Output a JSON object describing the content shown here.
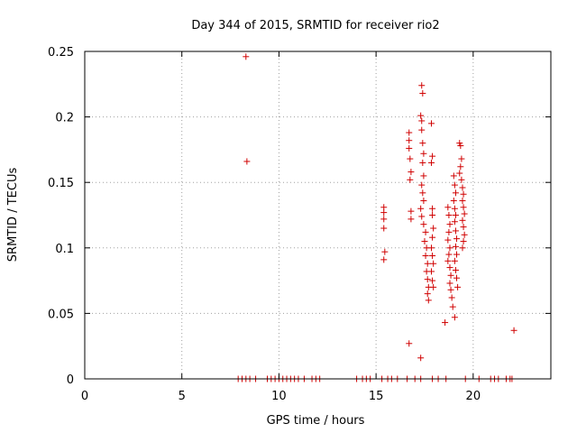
{
  "chart_data": {
    "type": "scatter",
    "title": "Day 344 of 2015, SRMTID for receiver rio2",
    "xlabel": "GPS time / hours",
    "ylabel": "SRMTID / TECUs",
    "xlim": [
      0,
      24
    ],
    "ylim": [
      0,
      0.25
    ],
    "xticks": [
      0,
      5,
      10,
      15,
      20
    ],
    "yticks": [
      0,
      0.05,
      0.1,
      0.15,
      0.2,
      0.25
    ],
    "xtick_labels": [
      "0",
      "5",
      "10",
      "15",
      "20"
    ],
    "ytick_labels": [
      "0",
      "0.05",
      "0.1",
      "0.15",
      "0.2",
      "0.25"
    ],
    "grid": true,
    "marker": "+",
    "color": "#d00000",
    "series": [
      {
        "name": "SRMTID",
        "points": [
          [
            8.3,
            0.246
          ],
          [
            8.35,
            0.166
          ],
          [
            15.4,
            0.131
          ],
          [
            15.4,
            0.127
          ],
          [
            15.4,
            0.122
          ],
          [
            15.4,
            0.115
          ],
          [
            15.45,
            0.097
          ],
          [
            15.4,
            0.091
          ],
          [
            16.7,
            0.188
          ],
          [
            16.7,
            0.182
          ],
          [
            16.7,
            0.176
          ],
          [
            16.75,
            0.168
          ],
          [
            16.8,
            0.158
          ],
          [
            16.75,
            0.152
          ],
          [
            16.8,
            0.128
          ],
          [
            16.8,
            0.122
          ],
          [
            16.7,
            0.027
          ],
          [
            17.35,
            0.224
          ],
          [
            17.4,
            0.218
          ],
          [
            17.3,
            0.201
          ],
          [
            17.35,
            0.197
          ],
          [
            17.35,
            0.19
          ],
          [
            17.4,
            0.18
          ],
          [
            17.45,
            0.172
          ],
          [
            17.4,
            0.165
          ],
          [
            17.45,
            0.155
          ],
          [
            17.35,
            0.148
          ],
          [
            17.4,
            0.142
          ],
          [
            17.45,
            0.136
          ],
          [
            17.3,
            0.13
          ],
          [
            17.35,
            0.124
          ],
          [
            17.45,
            0.118
          ],
          [
            17.55,
            0.112
          ],
          [
            17.5,
            0.105
          ],
          [
            17.6,
            0.1
          ],
          [
            17.55,
            0.094
          ],
          [
            17.65,
            0.088
          ],
          [
            17.6,
            0.082
          ],
          [
            17.65,
            0.076
          ],
          [
            17.7,
            0.07
          ],
          [
            17.65,
            0.065
          ],
          [
            17.7,
            0.06
          ],
          [
            17.3,
            0.016
          ],
          [
            17.85,
            0.195
          ],
          [
            17.9,
            0.17
          ],
          [
            17.85,
            0.165
          ],
          [
            17.9,
            0.13
          ],
          [
            17.9,
            0.125
          ],
          [
            17.95,
            0.115
          ],
          [
            17.9,
            0.108
          ],
          [
            17.85,
            0.1
          ],
          [
            17.9,
            0.094
          ],
          [
            17.95,
            0.088
          ],
          [
            17.85,
            0.082
          ],
          [
            17.9,
            0.075
          ],
          [
            17.95,
            0.07
          ],
          [
            18.55,
            0.043
          ],
          [
            18.7,
            0.131
          ],
          [
            18.75,
            0.125
          ],
          [
            18.8,
            0.118
          ],
          [
            18.75,
            0.112
          ],
          [
            18.7,
            0.106
          ],
          [
            18.8,
            0.1
          ],
          [
            18.75,
            0.095
          ],
          [
            18.7,
            0.09
          ],
          [
            18.8,
            0.085
          ],
          [
            18.85,
            0.079
          ],
          [
            18.8,
            0.073
          ],
          [
            18.85,
            0.068
          ],
          [
            18.9,
            0.062
          ],
          [
            18.95,
            0.055
          ],
          [
            19.0,
            0.155
          ],
          [
            19.05,
            0.148
          ],
          [
            19.1,
            0.142
          ],
          [
            19.0,
            0.136
          ],
          [
            19.05,
            0.13
          ],
          [
            19.1,
            0.125
          ],
          [
            19.05,
            0.12
          ],
          [
            19.1,
            0.113
          ],
          [
            19.15,
            0.107
          ],
          [
            19.1,
            0.101
          ],
          [
            19.15,
            0.095
          ],
          [
            19.05,
            0.09
          ],
          [
            19.1,
            0.083
          ],
          [
            19.15,
            0.077
          ],
          [
            19.2,
            0.07
          ],
          [
            19.05,
            0.047
          ],
          [
            19.3,
            0.18
          ],
          [
            19.35,
            0.178
          ],
          [
            19.4,
            0.168
          ],
          [
            19.35,
            0.162
          ],
          [
            19.3,
            0.157
          ],
          [
            19.4,
            0.152
          ],
          [
            19.45,
            0.146
          ],
          [
            19.5,
            0.141
          ],
          [
            19.45,
            0.136
          ],
          [
            19.5,
            0.131
          ],
          [
            19.55,
            0.126
          ],
          [
            19.45,
            0.121
          ],
          [
            19.5,
            0.116
          ],
          [
            19.55,
            0.11
          ],
          [
            19.5,
            0.105
          ],
          [
            19.45,
            0.1
          ],
          [
            22.1,
            0.037
          ],
          [
            7.9,
            0
          ],
          [
            8.1,
            0
          ],
          [
            8.3,
            0
          ],
          [
            8.5,
            0
          ],
          [
            8.8,
            0
          ],
          [
            9.4,
            0
          ],
          [
            9.6,
            0
          ],
          [
            9.8,
            0
          ],
          [
            10.0,
            0
          ],
          [
            10.2,
            0
          ],
          [
            10.4,
            0
          ],
          [
            10.6,
            0
          ],
          [
            10.8,
            0
          ],
          [
            11.0,
            0
          ],
          [
            11.3,
            0
          ],
          [
            11.7,
            0
          ],
          [
            11.9,
            0
          ],
          [
            12.1,
            0
          ],
          [
            14.0,
            0
          ],
          [
            14.3,
            0
          ],
          [
            14.5,
            0
          ],
          [
            14.7,
            0
          ],
          [
            15.3,
            0
          ],
          [
            15.6,
            0
          ],
          [
            15.8,
            0
          ],
          [
            16.1,
            0
          ],
          [
            16.6,
            0
          ],
          [
            17.0,
            0
          ],
          [
            17.3,
            0
          ],
          [
            17.9,
            0
          ],
          [
            18.2,
            0
          ],
          [
            18.6,
            0
          ],
          [
            19.6,
            0
          ],
          [
            20.3,
            0
          ],
          [
            20.9,
            0
          ],
          [
            21.1,
            0
          ],
          [
            21.3,
            0
          ],
          [
            21.7,
            0
          ],
          [
            21.9,
            0
          ],
          [
            22.0,
            0
          ]
        ]
      }
    ]
  }
}
